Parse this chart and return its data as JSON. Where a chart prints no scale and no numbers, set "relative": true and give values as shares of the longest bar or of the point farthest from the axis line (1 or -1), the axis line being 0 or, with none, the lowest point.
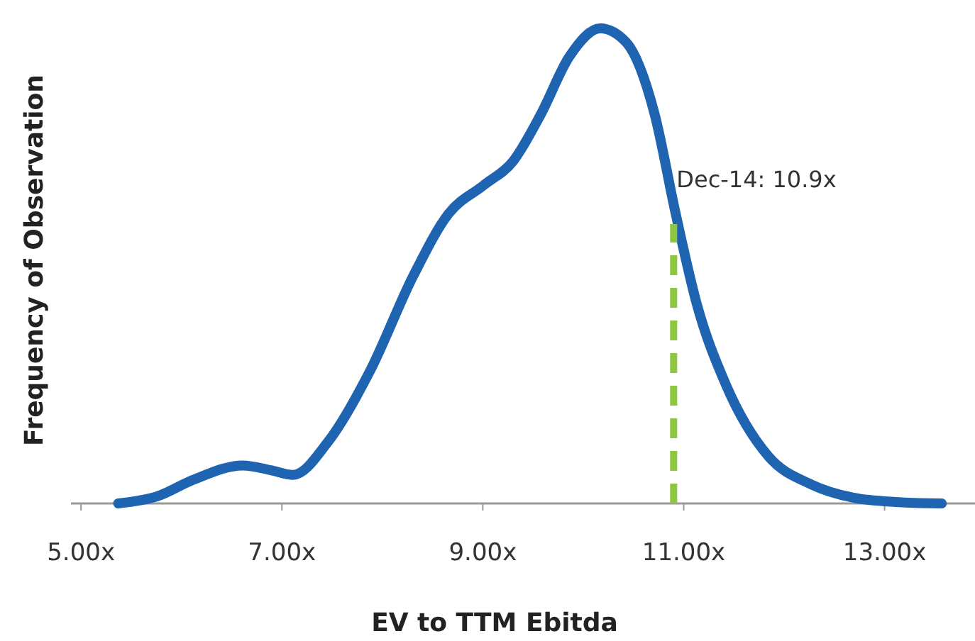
{
  "chart_data": {
    "type": "line",
    "relative": true,
    "xlabel": "EV to TTM Ebitda",
    "ylabel": "Frequency of Observation",
    "xlim": [
      4.9,
      13.9
    ],
    "xticks": [
      {
        "value": 5,
        "label": "5.00x"
      },
      {
        "value": 7,
        "label": "7.00x"
      },
      {
        "value": 9,
        "label": "9.00x"
      },
      {
        "value": 11,
        "label": "11.00x"
      },
      {
        "value": 13,
        "label": "13.00x"
      }
    ],
    "series": [
      {
        "color": "#1f64b0",
        "x": [
          5.37,
          5.76,
          6.12,
          6.61,
          6.89,
          7.11,
          7.46,
          7.88,
          8.31,
          8.66,
          9.01,
          9.3,
          9.58,
          9.86,
          10.17,
          10.43,
          10.71,
          10.92,
          11.13,
          11.42,
          11.84,
          12.27,
          12.69,
          13.11,
          13.57
        ],
        "values": [
          0,
          0.015,
          0.05,
          0.08,
          0.07,
          0.06,
          0.13,
          0.28,
          0.48,
          0.61,
          0.67,
          0.72,
          0.82,
          0.94,
          1,
          0.97,
          0.82,
          0.61,
          0.42,
          0.25,
          0.1,
          0.04,
          0.012,
          0.003,
          0
        ]
      }
    ],
    "ref_lines": [
      {
        "axis": "x",
        "value": 10.9,
        "label": "Dec-14: 10.9x",
        "color": "#8dc63f",
        "line_style": "dashed"
      }
    ],
    "grid": false,
    "marker": "none",
    "line_style": "solid"
  }
}
